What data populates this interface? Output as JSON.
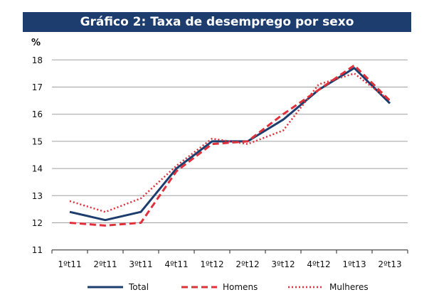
{
  "chart_data": {
    "type": "line",
    "title": "Gráfico 2: Taxa de desemprego por sexo",
    "ylabel": "%",
    "xlabel": "",
    "ylim": [
      11,
      18
    ],
    "yticks": [
      11,
      12,
      13,
      14,
      15,
      16,
      17,
      18
    ],
    "grid": true,
    "legend_placement": "bottom",
    "categories": [
      "1ºt11",
      "2ºt11",
      "3ºt11",
      "4ºt11",
      "1ºt12",
      "2ºt12",
      "3ºt12",
      "4ºt12",
      "1ºt13",
      "2ºt13"
    ],
    "series": [
      {
        "name": "Total",
        "color": "#1c3d6e",
        "style": "solid",
        "values": [
          12.4,
          12.1,
          12.4,
          14.0,
          15.0,
          15.0,
          15.8,
          16.9,
          17.7,
          16.4
        ]
      },
      {
        "name": "Homens",
        "color": "#e0303a",
        "style": "dashed",
        "values": [
          12.0,
          11.9,
          12.0,
          13.9,
          14.9,
          15.0,
          16.0,
          16.9,
          17.8,
          16.5
        ]
      },
      {
        "name": "Mulheres",
        "color": "#e0303a",
        "style": "dotted",
        "values": [
          12.8,
          12.4,
          12.9,
          14.1,
          15.1,
          14.9,
          15.4,
          17.1,
          17.5,
          16.5
        ]
      }
    ]
  }
}
